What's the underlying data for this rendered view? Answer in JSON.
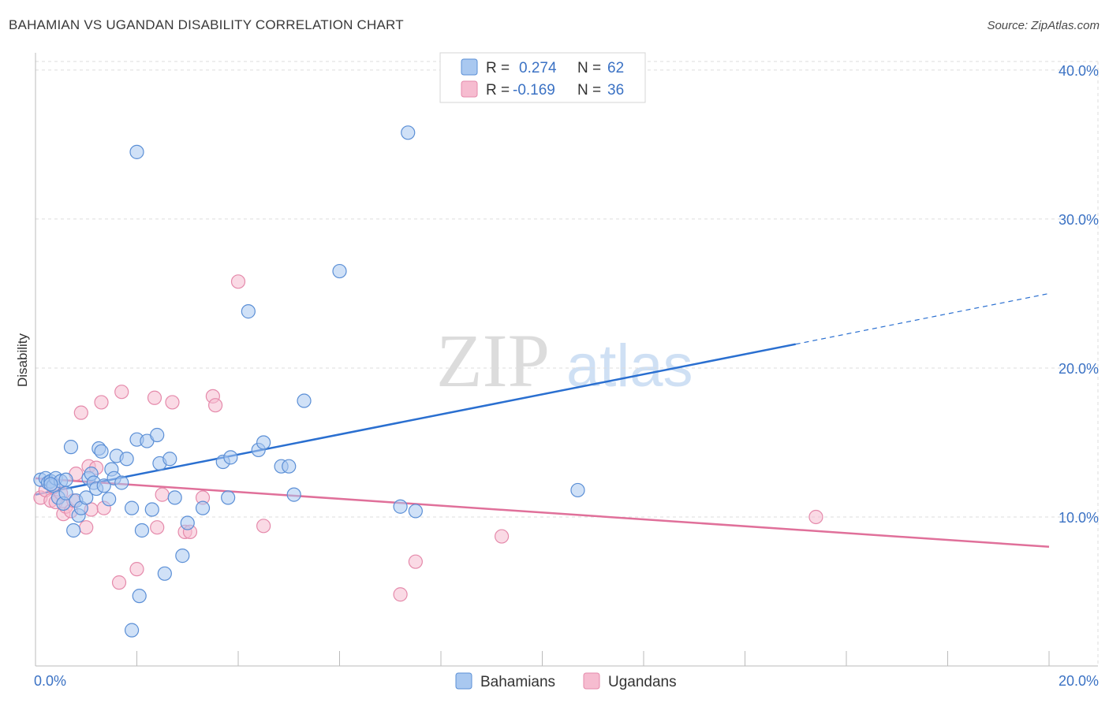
{
  "header": {
    "title": "BAHAMIAN VS UGANDAN DISABILITY CORRELATION CHART",
    "source": "Source: ZipAtlas.com"
  },
  "watermark": {
    "zip": "ZIP",
    "atlas": "atlas"
  },
  "colors": {
    "blue_fill": "#a9c8f0",
    "blue_stroke": "#5b8fd6",
    "blue_line": "#2a6fd0",
    "pink_fill": "#f6bcd0",
    "pink_stroke": "#e58aab",
    "pink_line": "#e0709a",
    "tick_label": "#3b72c4"
  },
  "chart_data": {
    "type": "scatter",
    "ylabel": "Disability",
    "xlim": [
      0,
      20
    ],
    "ylim": [
      0,
      41
    ],
    "y_ticks": [
      {
        "value": 10,
        "label": "10.0%"
      },
      {
        "value": 20,
        "label": "20.0%"
      },
      {
        "value": 30,
        "label": "30.0%"
      },
      {
        "value": 40,
        "label": "40.0%"
      }
    ],
    "x_tick_labels": [
      {
        "value": 0,
        "label": "0.0%"
      },
      {
        "value": 20,
        "label": "20.0%"
      }
    ],
    "x_minor_ticks": [
      0,
      2,
      4,
      6,
      8,
      10,
      12,
      14,
      16,
      18,
      20
    ],
    "grid": true,
    "legend_position": "top-center",
    "stats": [
      {
        "r_label": "R =",
        "r_value": "0.274",
        "n_label": "N =",
        "n_value": "62"
      },
      {
        "r_label": "R =",
        "r_value": "-0.169",
        "n_label": "N =",
        "n_value": "36"
      }
    ],
    "series": [
      {
        "name": "Bahamians",
        "trend": {
          "x0": 0,
          "y0": 11.5,
          "x1": 15.0,
          "y1": 21.6,
          "dash_to_x": 20.0,
          "dash_to_y": 25.0
        },
        "points": [
          [
            0.1,
            12.5
          ],
          [
            0.2,
            12.6
          ],
          [
            0.25,
            12.3
          ],
          [
            0.3,
            12.4
          ],
          [
            0.35,
            12.1
          ],
          [
            0.4,
            12.6
          ],
          [
            0.45,
            11.3
          ],
          [
            0.5,
            12.4
          ],
          [
            0.55,
            10.9
          ],
          [
            0.6,
            11.6
          ],
          [
            0.7,
            14.7
          ],
          [
            0.75,
            9.1
          ],
          [
            0.8,
            11.1
          ],
          [
            0.85,
            10.1
          ],
          [
            0.9,
            10.6
          ],
          [
            1.0,
            11.3
          ],
          [
            1.05,
            12.6
          ],
          [
            1.1,
            12.9
          ],
          [
            1.15,
            12.3
          ],
          [
            1.2,
            11.9
          ],
          [
            1.25,
            14.6
          ],
          [
            1.3,
            14.4
          ],
          [
            1.35,
            12.1
          ],
          [
            1.45,
            11.2
          ],
          [
            1.5,
            13.2
          ],
          [
            1.55,
            12.6
          ],
          [
            1.6,
            14.1
          ],
          [
            1.7,
            12.3
          ],
          [
            1.8,
            13.9
          ],
          [
            1.9,
            10.6
          ],
          [
            2.0,
            15.2
          ],
          [
            2.05,
            4.7
          ],
          [
            2.1,
            9.1
          ],
          [
            2.2,
            15.1
          ],
          [
            2.3,
            10.5
          ],
          [
            2.4,
            15.5
          ],
          [
            2.45,
            13.6
          ],
          [
            2.55,
            6.2
          ],
          [
            2.65,
            13.9
          ],
          [
            2.75,
            11.3
          ],
          [
            2.9,
            7.4
          ],
          [
            3.0,
            9.6
          ],
          [
            3.3,
            10.6
          ],
          [
            3.7,
            13.7
          ],
          [
            3.8,
            11.3
          ],
          [
            3.85,
            14.0
          ],
          [
            4.2,
            23.8
          ],
          [
            4.4,
            14.5
          ],
          [
            4.5,
            15.0
          ],
          [
            4.85,
            13.4
          ],
          [
            5.0,
            13.4
          ],
          [
            5.1,
            11.5
          ],
          [
            5.3,
            17.8
          ],
          [
            6.0,
            26.5
          ],
          [
            7.2,
            10.7
          ],
          [
            7.35,
            35.8
          ],
          [
            7.5,
            10.4
          ],
          [
            10.7,
            11.8
          ],
          [
            2.0,
            34.5
          ],
          [
            1.9,
            2.4
          ],
          [
            0.3,
            12.2
          ],
          [
            0.6,
            12.5
          ]
        ]
      },
      {
        "name": "Ugandans",
        "trend": {
          "x0": 0,
          "y0": 12.6,
          "x1": 20.0,
          "y1": 8.0
        },
        "points": [
          [
            0.1,
            11.3
          ],
          [
            0.2,
            11.8
          ],
          [
            0.3,
            11.1
          ],
          [
            0.4,
            11.0
          ],
          [
            0.5,
            11.6
          ],
          [
            0.55,
            10.2
          ],
          [
            0.6,
            10.7
          ],
          [
            0.7,
            10.4
          ],
          [
            0.75,
            11.1
          ],
          [
            0.8,
            12.9
          ],
          [
            0.9,
            17.0
          ],
          [
            1.0,
            9.3
          ],
          [
            1.05,
            13.4
          ],
          [
            1.1,
            10.5
          ],
          [
            1.2,
            13.3
          ],
          [
            1.3,
            17.7
          ],
          [
            1.35,
            10.6
          ],
          [
            1.65,
            5.6
          ],
          [
            1.7,
            18.4
          ],
          [
            2.0,
            6.5
          ],
          [
            2.35,
            18.0
          ],
          [
            2.4,
            9.3
          ],
          [
            2.5,
            11.5
          ],
          [
            2.7,
            17.7
          ],
          [
            2.95,
            9.0
          ],
          [
            3.05,
            9.0
          ],
          [
            3.3,
            11.3
          ],
          [
            3.5,
            18.1
          ],
          [
            3.55,
            17.5
          ],
          [
            4.0,
            25.8
          ],
          [
            4.5,
            9.4
          ],
          [
            7.2,
            4.8
          ],
          [
            7.5,
            7.0
          ],
          [
            9.2,
            8.7
          ],
          [
            15.4,
            10.0
          ],
          [
            0.35,
            12.0
          ]
        ]
      }
    ]
  }
}
